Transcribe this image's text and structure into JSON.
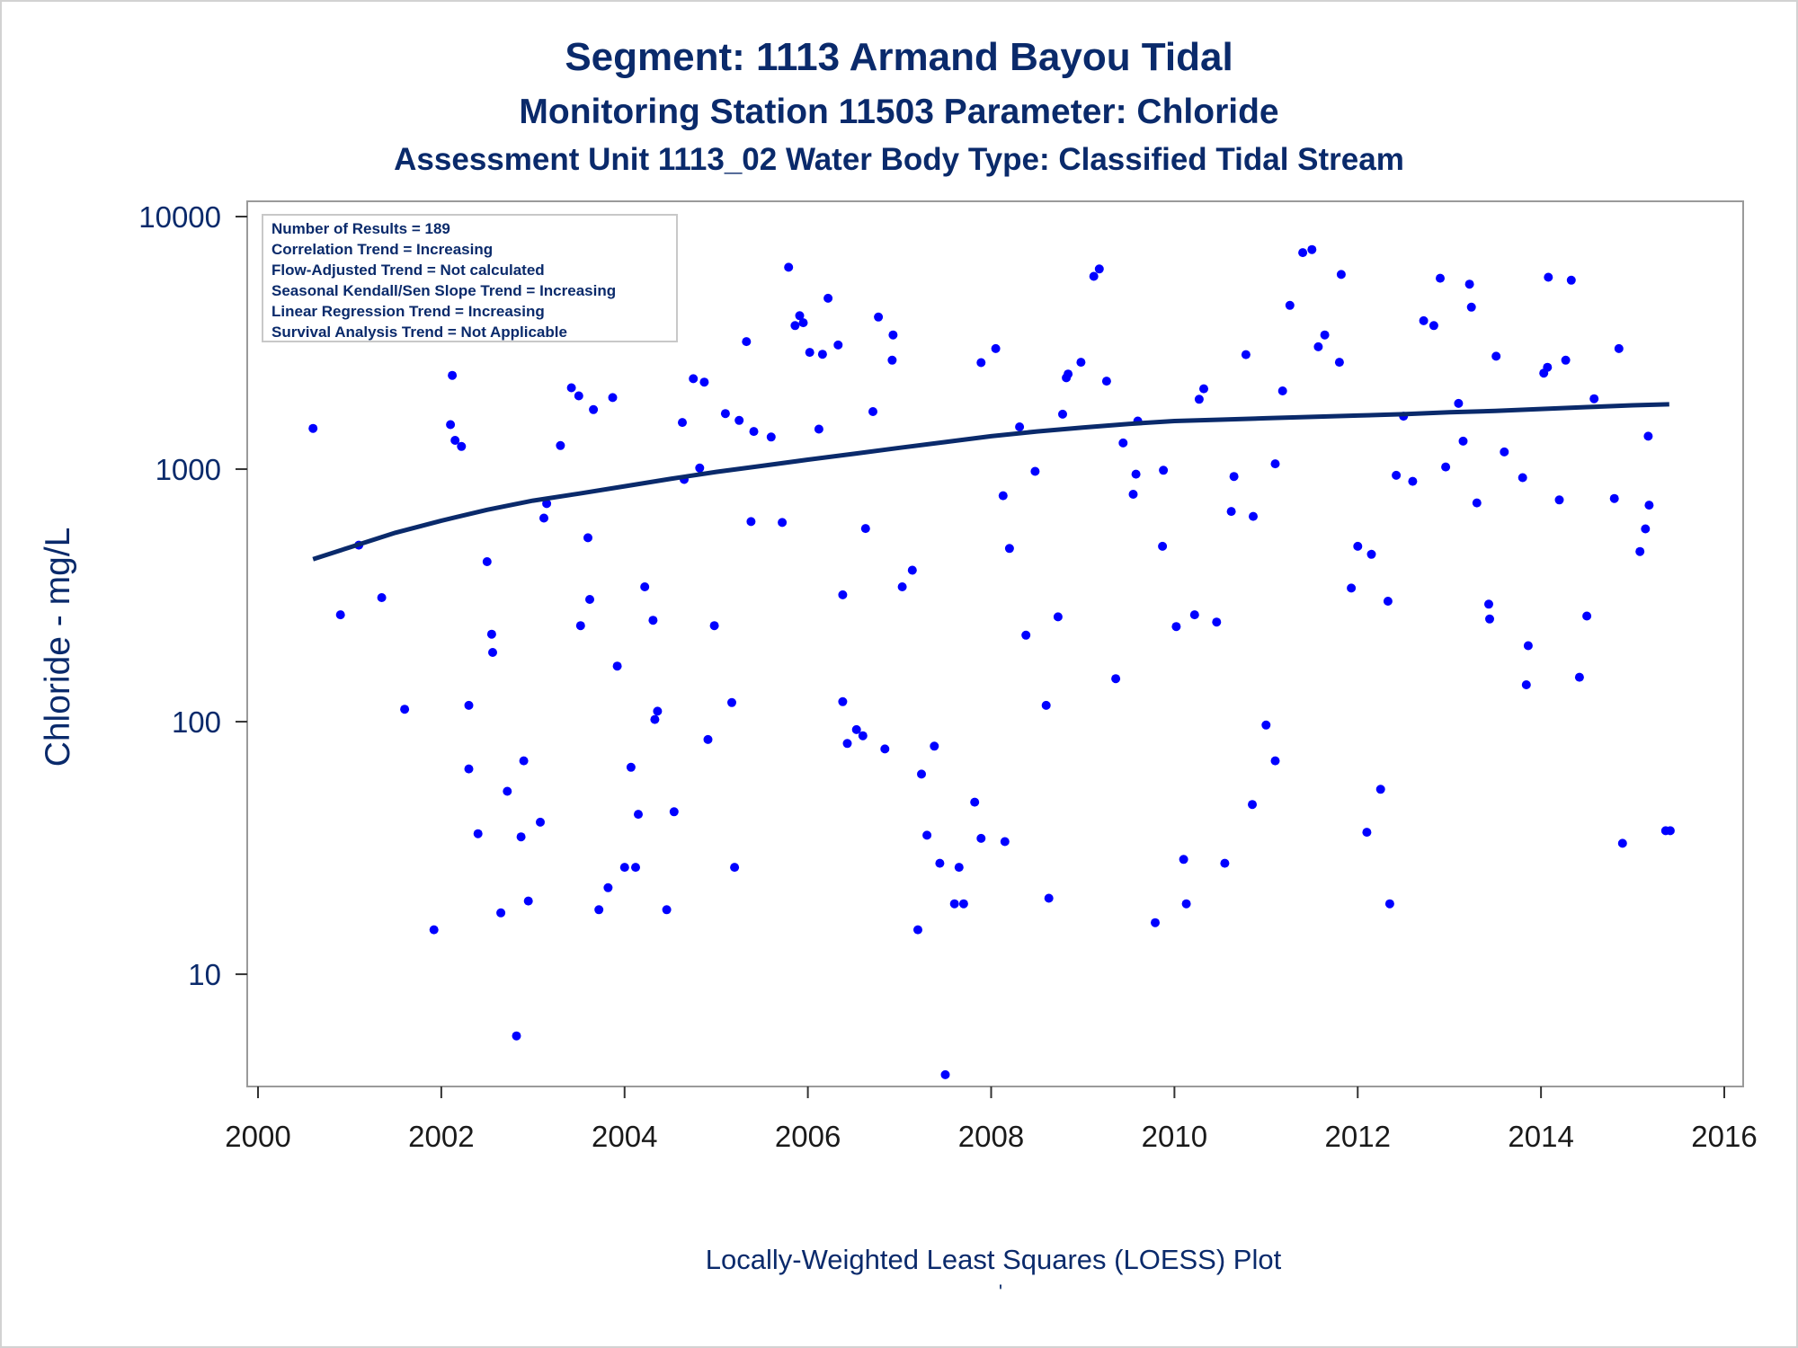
{
  "chart_data": {
    "type": "scatter",
    "title": "Segment: 1113  Armand Bayou Tidal",
    "subtitle": "Monitoring Station 11503 Parameter: Chloride",
    "subtitle2": "Assessment Unit 1113_02   Water Body Type: Classified Tidal Stream",
    "ylabel": "Chloride - mg/L",
    "footnote": "Locally-Weighted Least Squares (LOESS) Plot",
    "footnote2": "'",
    "xlim": [
      2000,
      2016
    ],
    "ylim": [
      3.9,
      10000
    ],
    "y_scale": "log",
    "xticks": [
      "2000",
      "2002",
      "2004",
      "2006",
      "2008",
      "2010",
      "2012",
      "2014",
      "2016"
    ],
    "yticks": [
      "10",
      "100",
      "1000",
      "10000"
    ],
    "grid": false,
    "legend_box": [
      "Number of Results = 189",
      "Correlation Trend = Increasing",
      "Flow-Adjusted Trend = Not calculated",
      "Seasonal Kendall/Sen Slope Trend = Increasing",
      "Linear Regression Trend = Increasing",
      "Survival Analysis Trend = Not Applicable"
    ],
    "colors": {
      "points": "#0000ff",
      "loess": "#0a2a6b",
      "text": "#0a2a6b",
      "frame": "#9a9a9a"
    },
    "series": [
      {
        "type": "scatter",
        "points": [
          [
            2000.6,
            1450
          ],
          [
            2000.9,
            265
          ],
          [
            2001.1,
            500
          ],
          [
            2001.35,
            310
          ],
          [
            2001.6,
            112
          ],
          [
            2001.92,
            15
          ],
          [
            2002.1,
            1500
          ],
          [
            2002.12,
            2350
          ],
          [
            2002.15,
            1300
          ],
          [
            2002.22,
            1230
          ],
          [
            2002.3,
            116
          ],
          [
            2002.3,
            65
          ],
          [
            2002.4,
            36
          ],
          [
            2002.5,
            430
          ],
          [
            2002.55,
            222
          ],
          [
            2002.56,
            188
          ],
          [
            2002.65,
            17.5
          ],
          [
            2002.72,
            53
          ],
          [
            2002.82,
            5.7
          ],
          [
            2002.87,
            35
          ],
          [
            2002.9,
            70
          ],
          [
            2002.95,
            19.5
          ],
          [
            2003.08,
            40
          ],
          [
            2003.12,
            640
          ],
          [
            2003.15,
            730
          ],
          [
            2003.3,
            1240
          ],
          [
            2003.42,
            2100
          ],
          [
            2003.5,
            1950
          ],
          [
            2003.52,
            240
          ],
          [
            2003.6,
            535
          ],
          [
            2003.62,
            305
          ],
          [
            2003.66,
            1720
          ],
          [
            2003.72,
            18
          ],
          [
            2003.82,
            22
          ],
          [
            2003.87,
            1920
          ],
          [
            2003.92,
            166
          ],
          [
            2004.0,
            26.5
          ],
          [
            2004.07,
            66
          ],
          [
            2004.12,
            26.5
          ],
          [
            2004.15,
            43
          ],
          [
            2004.22,
            342
          ],
          [
            2004.31,
            252
          ],
          [
            2004.33,
            102
          ],
          [
            2004.36,
            110
          ],
          [
            2004.46,
            18
          ],
          [
            2004.54,
            44
          ],
          [
            2004.63,
            1530
          ],
          [
            2004.65,
            910
          ],
          [
            2004.75,
            2280
          ],
          [
            2004.82,
            1010
          ],
          [
            2004.87,
            2210
          ],
          [
            2004.91,
            85
          ],
          [
            2004.98,
            240
          ],
          [
            2005.1,
            1660
          ],
          [
            2005.17,
            119
          ],
          [
            2005.2,
            26.5
          ],
          [
            2005.25,
            1560
          ],
          [
            2005.33,
            3200
          ],
          [
            2005.38,
            620
          ],
          [
            2005.41,
            1410
          ],
          [
            2005.6,
            1340
          ],
          [
            2005.72,
            615
          ],
          [
            2005.79,
            6300
          ],
          [
            2005.86,
            3700
          ],
          [
            2005.91,
            4050
          ],
          [
            2005.95,
            3800
          ],
          [
            2006.02,
            2900
          ],
          [
            2006.12,
            1440
          ],
          [
            2006.16,
            2850
          ],
          [
            2006.22,
            4750
          ],
          [
            2006.33,
            3100
          ],
          [
            2006.38,
            318
          ],
          [
            2006.38,
            120
          ],
          [
            2006.43,
            82
          ],
          [
            2006.53,
            93
          ],
          [
            2006.6,
            88
          ],
          [
            2006.63,
            582
          ],
          [
            2006.71,
            1690
          ],
          [
            2006.77,
            4000
          ],
          [
            2006.84,
            78
          ],
          [
            2006.92,
            2700
          ],
          [
            2006.93,
            3400
          ],
          [
            2007.03,
            342
          ],
          [
            2007.14,
            398
          ],
          [
            2007.2,
            15
          ],
          [
            2007.24,
            62
          ],
          [
            2007.3,
            35.5
          ],
          [
            2007.38,
            80
          ],
          [
            2007.44,
            27.5
          ],
          [
            2007.5,
            4
          ],
          [
            2007.6,
            19
          ],
          [
            2007.65,
            26.5
          ],
          [
            2007.7,
            19
          ],
          [
            2007.82,
            48
          ],
          [
            2007.89,
            2640
          ],
          [
            2007.89,
            34.5
          ],
          [
            2008.05,
            3000
          ],
          [
            2008.13,
            785
          ],
          [
            2008.15,
            33.5
          ],
          [
            2008.2,
            485
          ],
          [
            2008.31,
            1470
          ],
          [
            2008.38,
            220
          ],
          [
            2008.48,
            980
          ],
          [
            2008.6,
            116
          ],
          [
            2008.63,
            20
          ],
          [
            2008.73,
            260
          ],
          [
            2008.78,
            1650
          ],
          [
            2008.82,
            2300
          ],
          [
            2008.84,
            2380
          ],
          [
            2008.98,
            2650
          ],
          [
            2009.12,
            5800
          ],
          [
            2009.18,
            6200
          ],
          [
            2009.26,
            2230
          ],
          [
            2009.36,
            148
          ],
          [
            2009.44,
            1270
          ],
          [
            2009.55,
            795
          ],
          [
            2009.58,
            955
          ],
          [
            2009.6,
            1550
          ],
          [
            2009.79,
            16
          ],
          [
            2009.87,
            495
          ],
          [
            2009.88,
            990
          ],
          [
            2010.02,
            238
          ],
          [
            2010.1,
            28.5
          ],
          [
            2010.13,
            19
          ],
          [
            2010.22,
            265
          ],
          [
            2010.27,
            1890
          ],
          [
            2010.32,
            2080
          ],
          [
            2010.46,
            248
          ],
          [
            2010.55,
            27.5
          ],
          [
            2010.62,
            680
          ],
          [
            2010.65,
            935
          ],
          [
            2010.78,
            2840
          ],
          [
            2010.85,
            47
          ],
          [
            2010.86,
            650
          ],
          [
            2011.0,
            97
          ],
          [
            2011.1,
            1050
          ],
          [
            2011.1,
            70
          ],
          [
            2011.18,
            2040
          ],
          [
            2011.26,
            4450
          ],
          [
            2011.4,
            7200
          ],
          [
            2011.5,
            7400
          ],
          [
            2011.57,
            3050
          ],
          [
            2011.64,
            3400
          ],
          [
            2011.8,
            2650
          ],
          [
            2011.82,
            5900
          ],
          [
            2011.93,
            338
          ],
          [
            2012.0,
            495
          ],
          [
            2012.1,
            36.5
          ],
          [
            2012.15,
            460
          ],
          [
            2012.25,
            54
          ],
          [
            2012.33,
            300
          ],
          [
            2012.35,
            19
          ],
          [
            2012.42,
            945
          ],
          [
            2012.5,
            1620
          ],
          [
            2012.6,
            895
          ],
          [
            2012.72,
            3870
          ],
          [
            2012.83,
            3700
          ],
          [
            2012.9,
            5700
          ],
          [
            2012.96,
            1020
          ],
          [
            2013.1,
            1820
          ],
          [
            2013.15,
            1290
          ],
          [
            2013.22,
            5400
          ],
          [
            2013.24,
            4380
          ],
          [
            2013.3,
            735
          ],
          [
            2013.43,
            292
          ],
          [
            2013.44,
            255
          ],
          [
            2013.51,
            2800
          ],
          [
            2013.6,
            1170
          ],
          [
            2013.8,
            925
          ],
          [
            2013.84,
            140
          ],
          [
            2013.86,
            200
          ],
          [
            2014.03,
            2400
          ],
          [
            2014.07,
            2530
          ],
          [
            2014.08,
            5750
          ],
          [
            2014.2,
            755
          ],
          [
            2014.27,
            2700
          ],
          [
            2014.33,
            5600
          ],
          [
            2014.42,
            150
          ],
          [
            2014.5,
            262
          ],
          [
            2014.58,
            1900
          ],
          [
            2014.8,
            765
          ],
          [
            2014.85,
            3000
          ],
          [
            2014.89,
            33
          ],
          [
            2015.08,
            472
          ],
          [
            2015.14,
            580
          ],
          [
            2015.17,
            1350
          ],
          [
            2015.18,
            720
          ],
          [
            2015.36,
            37
          ],
          [
            2015.41,
            37
          ]
        ]
      },
      {
        "type": "line",
        "name": "LOESS",
        "points": [
          [
            2000.6,
            440
          ],
          [
            2001.0,
            490
          ],
          [
            2001.5,
            560
          ],
          [
            2002.0,
            625
          ],
          [
            2002.5,
            690
          ],
          [
            2003.0,
            750
          ],
          [
            2003.5,
            800
          ],
          [
            2004.0,
            855
          ],
          [
            2004.5,
            915
          ],
          [
            2005.0,
            975
          ],
          [
            2005.5,
            1030
          ],
          [
            2006.0,
            1090
          ],
          [
            2006.5,
            1150
          ],
          [
            2007.0,
            1215
          ],
          [
            2007.5,
            1280
          ],
          [
            2008.0,
            1350
          ],
          [
            2008.5,
            1410
          ],
          [
            2009.0,
            1460
          ],
          [
            2009.5,
            1510
          ],
          [
            2010.0,
            1550
          ],
          [
            2010.5,
            1570
          ],
          [
            2011.0,
            1590
          ],
          [
            2011.5,
            1610
          ],
          [
            2012.0,
            1630
          ],
          [
            2012.5,
            1650
          ],
          [
            2013.0,
            1680
          ],
          [
            2013.5,
            1700
          ],
          [
            2014.0,
            1730
          ],
          [
            2014.5,
            1760
          ],
          [
            2015.0,
            1790
          ],
          [
            2015.4,
            1805
          ]
        ]
      }
    ]
  }
}
